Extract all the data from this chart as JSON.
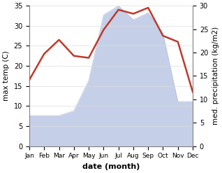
{
  "months": [
    "Jan",
    "Feb",
    "Mar",
    "Apr",
    "May",
    "Jun",
    "Jul",
    "Aug",
    "Sep",
    "Oct",
    "Nov",
    "Dec"
  ],
  "temperature": [
    16.5,
    23.0,
    26.5,
    22.5,
    22.0,
    29.0,
    34.0,
    33.0,
    34.5,
    27.5,
    26.0,
    13.5
  ],
  "precipitation": [
    6.5,
    6.5,
    6.5,
    7.5,
    14.0,
    28.0,
    30.0,
    27.0,
    28.5,
    24.0,
    9.5,
    9.5
  ],
  "temp_color": "#c0392b",
  "precip_fill_color": "#c5cfe8",
  "precip_line_color": "#b0bde0",
  "temp_ylim": [
    0,
    35
  ],
  "precip_ylim": [
    0,
    30
  ],
  "temp_yticks": [
    0,
    5,
    10,
    15,
    20,
    25,
    30,
    35
  ],
  "precip_yticks": [
    0,
    5,
    10,
    15,
    20,
    25,
    30
  ],
  "xlabel": "date (month)",
  "ylabel_left": "max temp (C)",
  "ylabel_right": "med. precipitation (kg/m2)",
  "bg_color": "#ffffff"
}
